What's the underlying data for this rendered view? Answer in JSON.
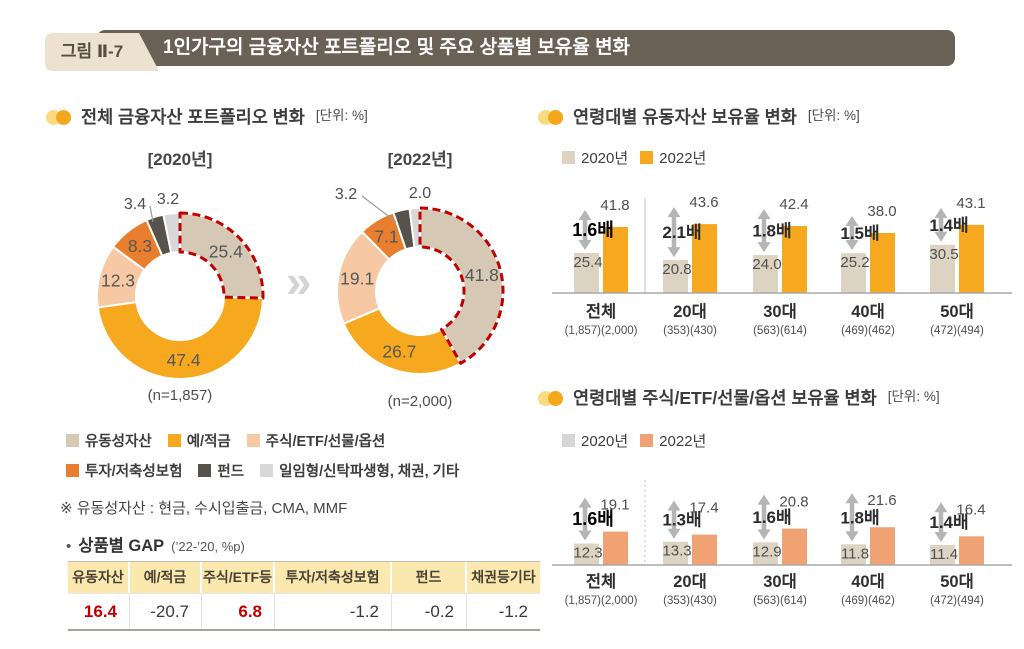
{
  "header": {
    "figure_label": "그림 Ⅱ-7",
    "title": "1인가구의 금융자산 포트폴리오 및 주요 상품별 보유율 변화"
  },
  "left_section": {
    "title": "전체 금융자산 포트폴리오 변화",
    "unit": "[단위: %]",
    "arrow_between": "»",
    "note": "※ 유동성자산 : 현금, 수시입출금, CMA, MMF",
    "legend": [
      {
        "label": "유동성자산",
        "color": "#D5C8B4"
      },
      {
        "label": "예/적금",
        "color": "#F6A91E"
      },
      {
        "label": "주식/ETF/선물/옵션",
        "color": "#F6C9A4"
      },
      {
        "label": "투자/저축성보험",
        "color": "#E87E2E"
      },
      {
        "label": "펀드",
        "color": "#57524C"
      },
      {
        "label": "일임형/신탁파생형, 채권, 기타",
        "color": "#D8D8D8"
      }
    ],
    "gap": {
      "bullet": "•",
      "title": "상품별 GAP",
      "subtitle": "(’22-’20, %p)",
      "headers": [
        "유동자산",
        "예/적금",
        "주식/ETF등",
        "투자/저축성보험",
        "펀드",
        "채권등기타"
      ],
      "values": [
        "16.4",
        "-20.7",
        "6.8",
        "-1.2",
        "-0.2",
        "-1.2"
      ],
      "red_flags": [
        true,
        false,
        true,
        false,
        false,
        false
      ]
    }
  },
  "right_sections": [
    {
      "title": "연령대별 유동자산 보유율 변화",
      "unit": "[단위: %]",
      "legend": [
        {
          "label": "2020년",
          "color": "#DCD3C3"
        },
        {
          "label": "2022년",
          "color": "#F6A91E"
        }
      ]
    },
    {
      "title": "연령대별 주식/ETF/선물/옵션 보유율 변화",
      "unit": "[단위: %]",
      "legend": [
        {
          "label": "2020년",
          "color": "#D6D6D6"
        },
        {
          "label": "2022년",
          "color": "#F0A274"
        }
      ]
    }
  ],
  "chart_data": [
    {
      "type": "pie",
      "title": "[2020년]",
      "n_label": "(n=1,857)",
      "labels": [
        "유동성자산",
        "예/적금",
        "주식/ETF/선물/옵션",
        "투자/저축성보험",
        "펀드",
        "일임형/신탁파생형, 채권, 기타"
      ],
      "values": [
        25.4,
        47.4,
        12.3,
        8.3,
        3.4,
        3.2
      ],
      "colors": [
        "#D5C8B4",
        "#F6A91E",
        "#F6C9A4",
        "#E87E2E",
        "#57524C",
        "#D8D8D8"
      ],
      "highlight_index": 0,
      "highlight_color": "#C00000"
    },
    {
      "type": "pie",
      "title": "[2022년]",
      "n_label": "(n=2,000)",
      "labels": [
        "유동성자산",
        "예/적금",
        "주식/ETF/선물/옵션",
        "투자/저축성보험",
        "펀드",
        "일임형/신탁파생형, 채권, 기타"
      ],
      "values": [
        41.8,
        26.7,
        19.1,
        7.1,
        3.2,
        2.0
      ],
      "colors": [
        "#D5C8B4",
        "#F6A91E",
        "#F6C9A4",
        "#E87E2E",
        "#57524C",
        "#D8D8D8"
      ],
      "highlight_index": 0,
      "highlight_color": "#C00000"
    },
    {
      "type": "bar",
      "title": "연령대별 유동자산 보유율 변화",
      "ylim": [
        0,
        50
      ],
      "categories": [
        "전체",
        "20대",
        "30대",
        "40대",
        "50대"
      ],
      "sample_sizes": [
        "(1,857)(2,000)",
        "(353)(430)",
        "(563)(614)",
        "(469)(462)",
        "(472)(494)"
      ],
      "series": [
        {
          "name": "2020년",
          "color": "#DCD3C3",
          "values": [
            25.4,
            20.8,
            24.0,
            25.2,
            30.5
          ]
        },
        {
          "name": "2022년",
          "color": "#F6A91E",
          "values": [
            41.8,
            43.6,
            42.4,
            38.0,
            43.1
          ]
        }
      ],
      "multipliers": [
        "1.6배",
        "2.1배",
        "1.8배",
        "1.5배",
        "1.4배"
      ]
    },
    {
      "type": "bar",
      "title": "연령대별 주식/ETF/선물/옵션 보유율 변화",
      "ylim": [
        0,
        25
      ],
      "categories": [
        "전체",
        "20대",
        "30대",
        "40대",
        "50대"
      ],
      "sample_sizes": [
        "(1,857)(2,000)",
        "(353)(430)",
        "(563)(614)",
        "(469)(462)",
        "(472)(494)"
      ],
      "series": [
        {
          "name": "2020년",
          "color": "#DCD3C3",
          "values": [
            12.3,
            13.3,
            12.9,
            11.8,
            11.4
          ]
        },
        {
          "name": "2022년",
          "color": "#F0A274",
          "values": [
            19.1,
            17.4,
            20.8,
            21.6,
            16.4
          ]
        }
      ],
      "multipliers": [
        "1.6배",
        "1.3배",
        "1.6배",
        "1.8배",
        "1.4배"
      ]
    }
  ],
  "colors": {
    "header_bar": "#6A6156",
    "badge_bg": "#EDE2CF",
    "accent_yellow": "#F6A91E",
    "tan": "#D5C8B4",
    "peach": "#F6C9A4",
    "orange": "#E87E2E",
    "dark": "#57524C",
    "light_gray": "#D8D8D8",
    "salmon": "#F0A274",
    "highlight_red": "#C00000",
    "table_header_bg": "#FBE8AF"
  }
}
